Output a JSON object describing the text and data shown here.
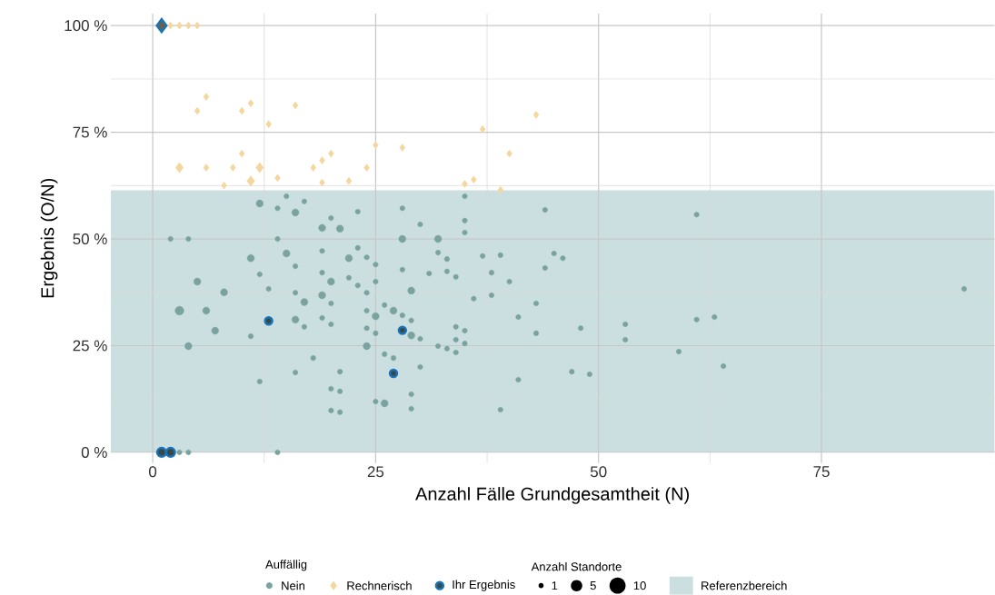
{
  "chart_data": {
    "type": "bubble",
    "xlabel": "Anzahl Fälle Grundgesamtheit (N)",
    "ylabel": "Ergebnis (O/N)",
    "legend_title": "Auffällig",
    "annotations": [
      "Anzahl Standorte"
    ],
    "xlim": [
      -4.7,
      94.4
    ],
    "ylim": [
      -2.5,
      102.8
    ],
    "xticks": [
      0,
      25,
      50,
      75
    ],
    "yticks": [
      {
        "value": 0,
        "label": "0 %"
      },
      {
        "value": 25,
        "label": "25 %"
      },
      {
        "value": 50,
        "label": "50 %"
      },
      {
        "value": 75,
        "label": "75 %"
      },
      {
        "value": 100,
        "label": "100 %"
      }
    ],
    "grid": true,
    "legend": "bottom",
    "size_legend": [
      1,
      5,
      10
    ],
    "bands": [
      {
        "axis": "y",
        "from": 0,
        "to": 61.4,
        "label": "Referenzbereich",
        "color": "#cbdfe0"
      }
    ],
    "series": [
      {
        "name": "Nein",
        "color": "#7aa39f",
        "marker": "circle",
        "x": [
          12,
          14,
          15,
          16,
          17,
          20,
          19,
          21,
          23,
          28,
          30,
          2,
          4,
          14,
          28,
          35,
          44,
          61,
          35,
          35,
          32,
          11,
          15,
          19,
          23,
          22,
          24,
          25,
          28,
          16,
          12,
          19,
          20,
          22,
          23,
          25,
          5,
          8,
          13,
          16,
          19,
          17,
          24,
          20,
          29,
          3,
          6,
          7,
          4,
          11,
          16,
          17,
          19,
          20,
          24,
          25,
          24,
          25,
          26,
          27,
          28,
          29,
          29,
          30,
          24,
          26,
          27,
          30,
          18,
          16,
          12,
          21,
          20,
          21,
          29,
          25,
          26,
          29,
          20,
          21,
          3,
          4,
          14,
          32,
          33,
          37,
          39,
          45,
          46,
          31,
          33,
          34,
          38,
          40,
          44,
          36,
          38,
          43,
          41,
          48,
          43,
          53,
          53,
          61,
          32,
          33,
          34,
          34,
          35,
          34,
          35,
          41,
          47,
          49,
          39,
          59,
          63,
          64,
          91
        ],
        "values": [
          58.3,
          57.2,
          60,
          56.2,
          58.8,
          54.9,
          52.6,
          52.4,
          56.4,
          57.2,
          53.4,
          50,
          50,
          50,
          50,
          60,
          56.8,
          55.7,
          54.3,
          51.5,
          50,
          45.5,
          46.6,
          47.2,
          47.9,
          45.5,
          45.7,
          44,
          42.8,
          43.6,
          41.7,
          42.1,
          40,
          40.9,
          39.1,
          40,
          40,
          37.5,
          38.3,
          37.4,
          36.8,
          35.2,
          37.4,
          34.9,
          37.9,
          33.2,
          33.2,
          28.5,
          24.9,
          27.2,
          31.1,
          29.4,
          31.5,
          30,
          33.2,
          31.9,
          29.1,
          27.9,
          34.5,
          33.2,
          32.1,
          30.9,
          27.4,
          26.6,
          24.9,
          23,
          22.1,
          20,
          22.1,
          18.7,
          16.6,
          18.9,
          14.9,
          14.3,
          13.6,
          11.9,
          11.5,
          10.2,
          9.8,
          9.4,
          0,
          0,
          0,
          46.8,
          45.3,
          46,
          46.2,
          46.6,
          45.5,
          41.9,
          42.4,
          41.1,
          42.1,
          40,
          43.2,
          36,
          36.8,
          34.9,
          31.7,
          29.1,
          27.9,
          30,
          26.4,
          31.1,
          24.9,
          24.3,
          23.4,
          29.4,
          28.5,
          26.4,
          25.5,
          17,
          18.9,
          18.3,
          10,
          23.6,
          31.7,
          20.2,
          38.3
        ],
        "sizes": [
          2,
          1,
          1,
          2,
          1,
          1,
          2,
          2,
          1,
          1,
          1,
          1,
          1,
          1,
          2,
          1,
          1,
          1,
          1,
          1,
          2,
          2,
          2,
          1,
          1,
          2,
          1,
          1,
          1,
          1,
          1,
          1,
          2,
          1,
          1,
          1,
          2,
          2,
          1,
          1,
          2,
          2,
          1,
          1,
          2,
          3,
          2,
          2,
          2,
          1,
          2,
          1,
          1,
          1,
          1,
          2,
          1,
          1,
          1,
          2,
          1,
          1,
          2,
          1,
          2,
          1,
          1,
          1,
          1,
          1,
          1,
          1,
          1,
          1,
          1,
          1,
          2,
          1,
          1,
          1,
          1,
          1,
          1,
          1,
          1,
          1,
          1,
          1,
          1,
          1,
          1,
          1,
          1,
          1,
          1,
          1,
          1,
          1,
          1,
          1,
          1,
          1,
          1,
          1,
          1,
          1,
          1,
          1,
          1,
          1,
          1,
          1,
          1,
          1,
          1,
          1,
          1,
          1,
          1
        ]
      },
      {
        "name": "Rechnerisch",
        "color": "#f5d69f",
        "marker": "diamond",
        "x": [
          2,
          3,
          4,
          5,
          6,
          5,
          10,
          11,
          13,
          16,
          10,
          3,
          6,
          9,
          12,
          19,
          20,
          14,
          11,
          8,
          18,
          19,
          22,
          24,
          25,
          28,
          35,
          36,
          37,
          39,
          40,
          43
        ],
        "values": [
          100,
          100,
          100,
          100,
          83.3,
          80,
          80,
          81.8,
          76.9,
          81.3,
          70,
          66.7,
          66.7,
          66.7,
          66.7,
          68.4,
          70,
          64.3,
          63.6,
          62.5,
          66.7,
          63.2,
          63.6,
          66.7,
          72,
          71.4,
          62.9,
          63.9,
          75.7,
          61.5,
          70,
          79.1
        ],
        "sizes": [
          1,
          1,
          1,
          1,
          1,
          1,
          1,
          1,
          1,
          1,
          1,
          2,
          1,
          1,
          2,
          1,
          1,
          1,
          2,
          1,
          1,
          1,
          1,
          1,
          1,
          1,
          1,
          1,
          1,
          1,
          1,
          1
        ]
      },
      {
        "name": "Ihr Ergebnis",
        "color": "#1a73b8",
        "marker": "circle",
        "x": [
          13,
          28,
          27,
          1,
          2
        ],
        "values": [
          30.8,
          28.6,
          18.5,
          0,
          0
        ],
        "sizes": [
          2,
          2,
          2,
          3,
          3
        ]
      },
      {
        "color": "#1a73b8",
        "marker": "diamond",
        "x": [
          1
        ],
        "values": [
          100
        ],
        "sizes": [
          3
        ]
      }
    ]
  }
}
